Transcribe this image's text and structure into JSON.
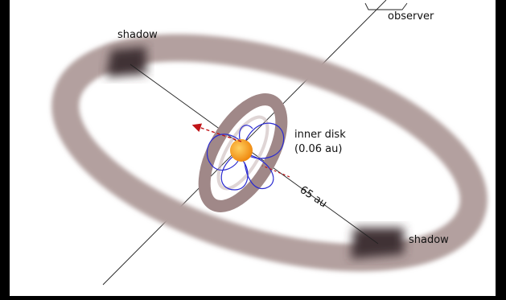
{
  "labels": {
    "observer": "observer",
    "shadow_top": "shadow",
    "shadow_bottom": "shadow",
    "inner_disk_line1": "inner disk",
    "inner_disk_line2": "(0.06 au)",
    "distance": "65 au"
  },
  "colors": {
    "outer_ring": "#b3a09f",
    "inner_disk": "#a08888",
    "shadow": "#3f3335",
    "star": "#f7a41e",
    "field_lines": "#2a2ad0",
    "arrow": "#c01418"
  }
}
